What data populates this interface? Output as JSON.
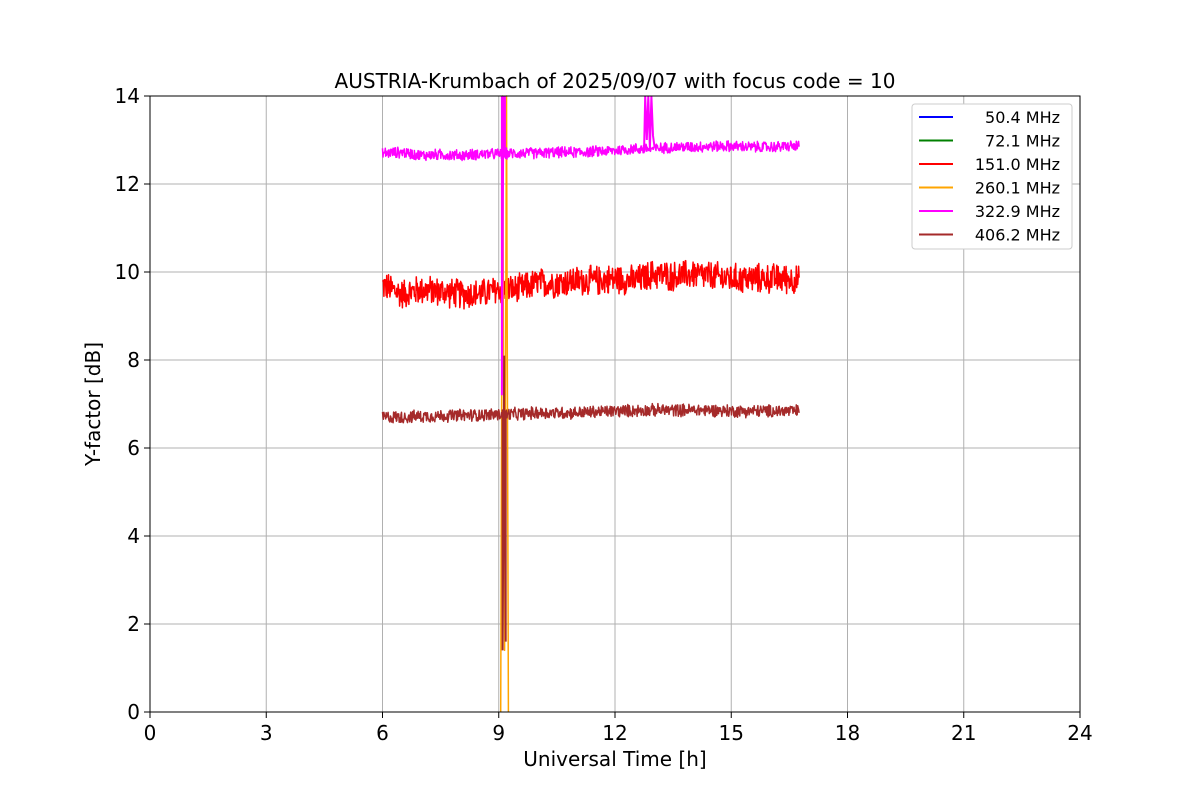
{
  "chart_data": {
    "type": "line",
    "title": "AUSTRIA-Krumbach of 2025/09/07 with focus code = 10",
    "xlabel": "Universal Time [h]",
    "ylabel": "Y-factor [dB]",
    "xlim": [
      0,
      24
    ],
    "ylim": [
      0,
      14
    ],
    "xticks": [
      0,
      3,
      6,
      9,
      12,
      15,
      18,
      21,
      24
    ],
    "yticks": [
      0,
      2,
      4,
      6,
      8,
      10,
      12,
      14
    ],
    "grid": true,
    "legend_position": "top-right",
    "series": [
      {
        "name": "  50.4 MHz",
        "color": "#0000ff",
        "values": []
      },
      {
        "name": "  72.1 MHz",
        "color": "#008000",
        "values": []
      },
      {
        "name": " 151.0 MHz",
        "color": "#ff0000",
        "x": [
          6.0,
          6.5,
          7.0,
          7.5,
          8.0,
          8.5,
          9.0,
          9.5,
          10.0,
          10.5,
          11.0,
          11.5,
          12.0,
          12.5,
          13.0,
          13.5,
          14.0,
          14.5,
          15.0,
          15.5,
          16.0,
          16.5,
          16.75
        ],
        "values": [
          9.7,
          9.5,
          9.6,
          9.55,
          9.5,
          9.5,
          9.6,
          9.6,
          9.75,
          9.75,
          9.8,
          9.8,
          9.85,
          9.8,
          9.95,
          9.9,
          9.95,
          9.9,
          9.85,
          9.85,
          9.85,
          9.85,
          9.8
        ]
      },
      {
        "name": " 260.1 MHz",
        "color": "#ffa500",
        "x": [
          9.05,
          9.1,
          9.15,
          9.2,
          9.25
        ],
        "values": [
          0.0,
          14.0,
          1.4,
          14.0,
          0.0
        ]
      },
      {
        "name": " 322.9 MHz",
        "color": "#ff00ff",
        "x": [
          6.0,
          6.5,
          7.0,
          7.5,
          8.0,
          8.5,
          9.0,
          9.5,
          10.0,
          10.5,
          11.0,
          11.5,
          12.0,
          12.5,
          13.0,
          13.5,
          14.0,
          14.5,
          15.0,
          15.5,
          16.0,
          16.5,
          16.75
        ],
        "values": [
          12.7,
          12.72,
          12.65,
          12.67,
          12.65,
          12.68,
          12.68,
          12.7,
          12.7,
          12.72,
          12.72,
          12.74,
          12.76,
          12.8,
          12.8,
          12.84,
          12.84,
          12.86,
          12.86,
          12.84,
          12.84,
          12.86,
          12.86
        ]
      },
      {
        "name": " 406.2 MHz",
        "color": "#a52a2a",
        "x": [
          6.0,
          6.5,
          7.0,
          7.5,
          8.0,
          8.5,
          9.0,
          9.5,
          10.0,
          10.5,
          11.0,
          11.5,
          12.0,
          12.5,
          13.0,
          13.5,
          14.0,
          14.5,
          15.0,
          15.5,
          16.0,
          16.5,
          16.75
        ],
        "values": [
          6.7,
          6.7,
          6.72,
          6.73,
          6.74,
          6.75,
          6.76,
          6.77,
          6.8,
          6.8,
          6.8,
          6.82,
          6.84,
          6.85,
          6.86,
          6.86,
          6.86,
          6.86,
          6.84,
          6.84,
          6.84,
          6.84,
          6.84
        ]
      }
    ]
  }
}
